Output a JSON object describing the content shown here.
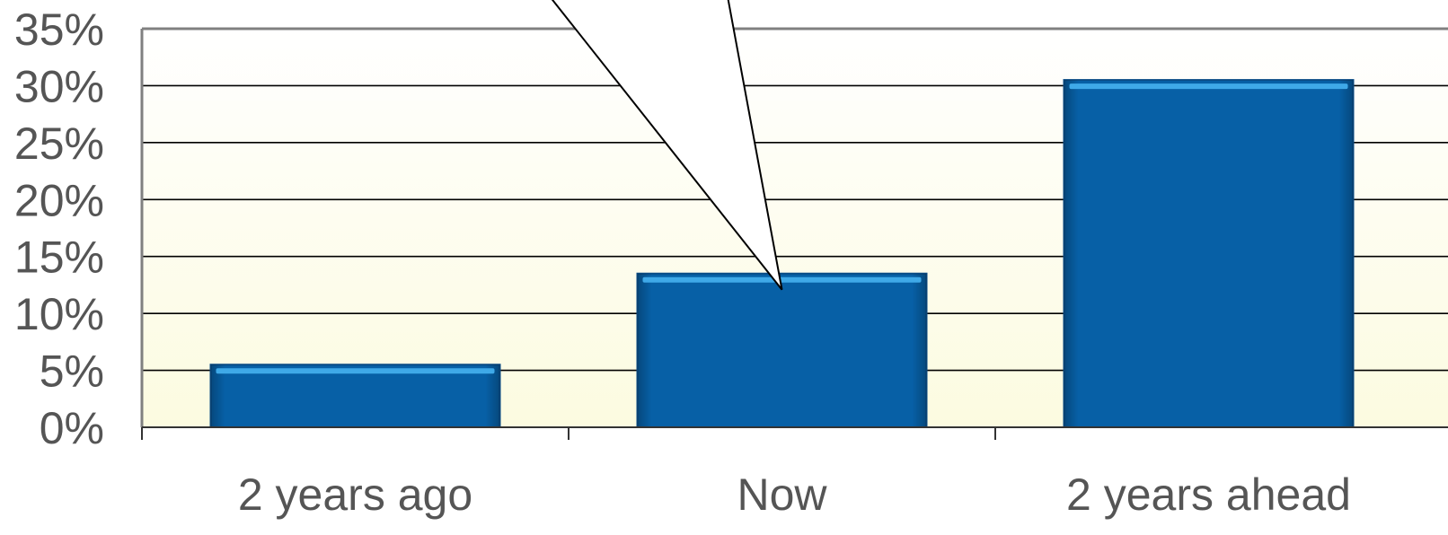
{
  "chart_data": {
    "type": "bar",
    "categories": [
      "2 years ago",
      "Now",
      "2 years ahead"
    ],
    "values": [
      5.5,
      13.5,
      30.5
    ],
    "ylim": [
      0,
      35
    ],
    "yticks": [
      0,
      5,
      10,
      15,
      20,
      25,
      30,
      35
    ],
    "ytick_labels": [
      "0%",
      "5%",
      "10%",
      "15%",
      "20%",
      "25%",
      "30%",
      "35%"
    ],
    "unit": "%",
    "grid": true,
    "title": "",
    "xlabel": "",
    "ylabel": "",
    "callout_target_category": "Now",
    "colors": {
      "bar": "#0760A6",
      "bar_edge": "#0A4C86",
      "bar_highlight": "#3FA9E8",
      "gridline": "#000000",
      "axis": "#808080",
      "label": "#555555",
      "plot_bg_top": "#FFFFFF",
      "plot_bg_bottom": "#FCFBE0",
      "callout_fill": "#FFFFFF",
      "callout_stroke": "#000000"
    }
  }
}
